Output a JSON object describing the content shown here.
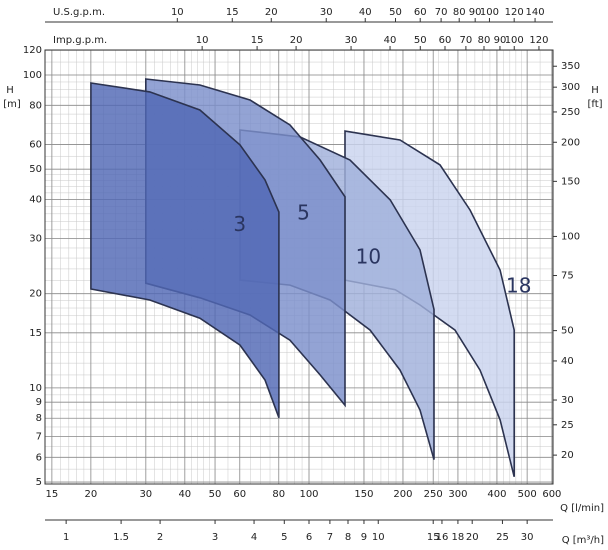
{
  "chart_data": {
    "type": "area",
    "log_x": true,
    "log_y": true,
    "grid": true,
    "x_label": "Q [l/min]",
    "xlim": [
      14.26,
      605
    ],
    "xticks": [
      15,
      20,
      30,
      40,
      50,
      60,
      80,
      100,
      150,
      200,
      250,
      300,
      400,
      500,
      600
    ],
    "y_label": "H",
    "y_unit": "[m]",
    "ylim": [
      4.93,
      120.2
    ],
    "yticks": [
      5,
      6,
      7,
      8,
      9,
      10,
      15,
      20,
      30,
      40,
      50,
      60,
      80,
      100,
      120
    ],
    "y2_label": "H",
    "y2_unit": "[ft]",
    "y2lim": [
      16.17,
      394.4
    ],
    "y2ticks": [
      20,
      25,
      30,
      40,
      50,
      75,
      100,
      150,
      200,
      250,
      300,
      350
    ],
    "top_axes": [
      {
        "label": "U.S.g.p.m.",
        "xlim": [
          3.768,
          159.8
        ],
        "xticks": [
          10,
          15,
          20,
          30,
          40,
          50,
          60,
          70,
          80,
          90,
          100,
          120,
          140
        ]
      },
      {
        "label": "Imp.g.p.m.",
        "xlim": [
          3.137,
          133.1
        ],
        "xticks": [
          10,
          15,
          20,
          30,
          40,
          50,
          60,
          70,
          80,
          90,
          100,
          120
        ]
      }
    ],
    "bottom_axis2": {
      "label": "Q [m³/h]",
      "xlim": [
        0.8556,
        36.3
      ],
      "xticks": [
        1,
        1.5,
        2,
        3,
        4,
        5,
        6,
        7,
        8,
        9,
        10,
        15,
        16,
        18,
        20,
        25,
        30
      ]
    },
    "series": [
      {
        "name": "18",
        "color": "#c9d3ee",
        "x": [
          130.4,
          195.7,
          262.9,
          328.2,
          409.6,
          454.3,
          454.3,
          409.6,
          353,
          293.5,
          226.8,
          189,
          130.4
        ],
        "values": [
          66.2,
          62.0,
          51.6,
          37.0,
          23.8,
          15.3,
          5.2,
          7.9,
          11.4,
          15.3,
          18.4,
          20.6,
          22.1
        ]
      },
      {
        "name": "10",
        "color": "#a0b0da",
        "x": [
          60.1,
          93.6,
          135.3,
          182,
          226.8,
          251.5,
          251.5,
          226.8,
          195.7,
          157,
          116.8,
          86.9,
          60.1
        ],
        "values": [
          66.7,
          63.4,
          53.5,
          39.9,
          27.6,
          17.8,
          5.9,
          8.5,
          11.4,
          15.3,
          19.1,
          21.3,
          22.1
        ]
      },
      {
        "name": "5",
        "color": "#7b8fca",
        "x": [
          30.0,
          44.7,
          64.7,
          86.9,
          108.5,
          130.4,
          130.4,
          108.5,
          86.9,
          64.7,
          44.7,
          30.0
        ],
        "values": [
          97.1,
          92.9,
          83.2,
          69.2,
          53.5,
          40.8,
          8.8,
          11.0,
          14.2,
          17.1,
          19.4,
          21.6
        ]
      },
      {
        "name": "3",
        "color": "#5068b4",
        "x": [
          20.0,
          30.9,
          44.7,
          60.1,
          72.3,
          80.1,
          80.1,
          72.3,
          60.1,
          44.7,
          30.9,
          20.0
        ],
        "values": [
          94.3,
          88.3,
          77.3,
          59.8,
          46.2,
          36.5,
          8.03,
          10.6,
          13.7,
          16.7,
          19.1,
          20.7
        ]
      }
    ],
    "series_label_pos": [
      [
        470,
        21
      ],
      [
        155,
        26
      ],
      [
        96,
        36
      ],
      [
        60,
        33
      ]
    ]
  }
}
